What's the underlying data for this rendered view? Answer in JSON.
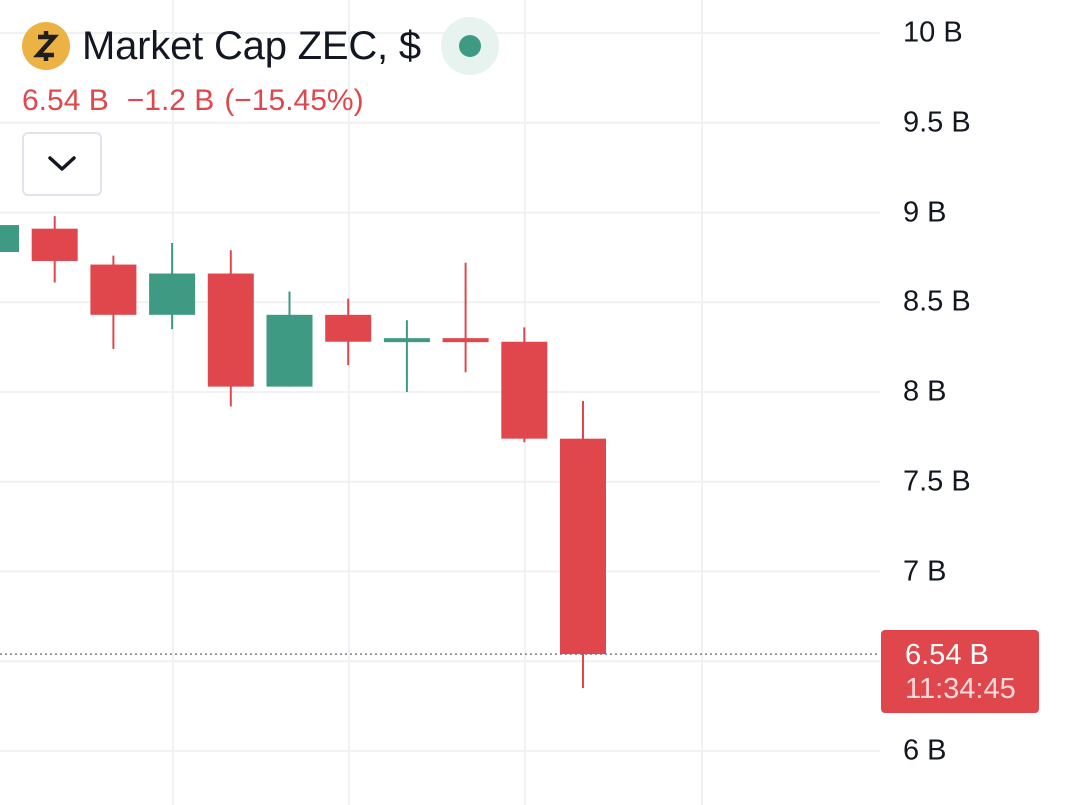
{
  "header": {
    "coin_icon": "zcash-icon",
    "title": "Market Cap ZEC, $",
    "live_icon": "live-status-dot-icon",
    "last_value": "6.54 B",
    "change_abs": "−1.2 B",
    "change_pct": "(−15.45%)"
  },
  "controls": {
    "collapse_icon": "chevron-down-icon"
  },
  "price_tag": {
    "value": "6.54 B",
    "countdown": "11:34:45"
  },
  "colors": {
    "up": "#3f9a83",
    "down": "#e0474c",
    "grid": "#f0f1f4",
    "text": "#131722",
    "coin": "#ecb244"
  },
  "chart_data": {
    "type": "candlestick",
    "title": "Market Cap ZEC, $",
    "y_unit": "B",
    "ylim": [
      6,
      10
    ],
    "yticks": [
      {
        "value": 10,
        "label": "10 B"
      },
      {
        "value": 9.5,
        "label": "9.5 B"
      },
      {
        "value": 9,
        "label": "9 B"
      },
      {
        "value": 8.5,
        "label": "8.5 B"
      },
      {
        "value": 8,
        "label": "8 B"
      },
      {
        "value": 7.5,
        "label": "7.5 B"
      },
      {
        "value": 7,
        "label": "7 B"
      },
      {
        "value": 6,
        "label": "6 B"
      }
    ],
    "grid": true,
    "current_value": 6.54,
    "candles": [
      {
        "open": 8.78,
        "high": 8.93,
        "low": 8.72,
        "close": 8.93
      },
      {
        "open": 8.91,
        "high": 8.98,
        "low": 8.61,
        "close": 8.73
      },
      {
        "open": 8.71,
        "high": 8.76,
        "low": 8.24,
        "close": 8.43
      },
      {
        "open": 8.43,
        "high": 8.83,
        "low": 8.35,
        "close": 8.66
      },
      {
        "open": 8.66,
        "high": 8.79,
        "low": 7.92,
        "close": 8.03
      },
      {
        "open": 8.03,
        "high": 8.56,
        "low": 8.03,
        "close": 8.43
      },
      {
        "open": 8.43,
        "high": 8.52,
        "low": 8.15,
        "close": 8.28
      },
      {
        "open": 8.28,
        "high": 8.4,
        "low": 8.0,
        "close": 8.3
      },
      {
        "open": 8.3,
        "high": 8.72,
        "low": 8.11,
        "close": 8.28
      },
      {
        "open": 8.28,
        "high": 8.36,
        "low": 7.72,
        "close": 7.74
      },
      {
        "open": 7.74,
        "high": 7.95,
        "low": 6.35,
        "close": 6.54
      }
    ]
  }
}
